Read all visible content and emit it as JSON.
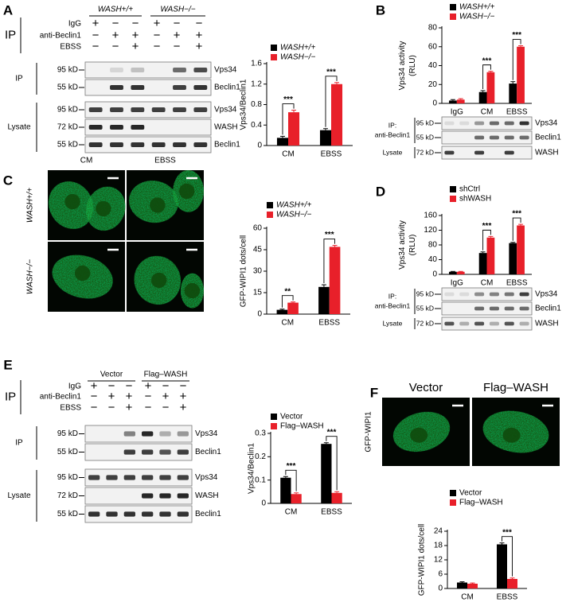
{
  "chart_data": [
    {
      "type": "bar",
      "y_label": [
        "Vps34/Beclin1"
      ],
      "categories": [
        "CM",
        "EBSS"
      ],
      "series": [
        {
          "name": "WASH+/+",
          "color": "#000000",
          "values": [
            0.15,
            0.3
          ],
          "errors": [
            0.03,
            0.03
          ]
        },
        {
          "name": "WASH−/−",
          "color": "#e8202a",
          "values": [
            0.65,
            1.2
          ],
          "errors": [
            0.04,
            0.03
          ]
        }
      ],
      "significance": [
        "***",
        "***"
      ],
      "ylim": [
        0,
        1.6
      ],
      "yticks": [
        0,
        0.4,
        0.8,
        1.2,
        1.6
      ]
    },
    {
      "type": "bar",
      "y_label": [
        "Vps34 activity",
        "(RLU)"
      ],
      "categories": [
        "IgG",
        "CM",
        "EBSS"
      ],
      "series": [
        {
          "name": "WASH+/+",
          "color": "#000000",
          "values": [
            3,
            12,
            21
          ],
          "errors": [
            1,
            1.5,
            2
          ]
        },
        {
          "name": "WASH−/−",
          "color": "#e8202a",
          "values": [
            4,
            33,
            60
          ],
          "errors": [
            1,
            1,
            1
          ]
        }
      ],
      "significance": [
        null,
        "***",
        "***"
      ],
      "ylim": [
        0,
        80
      ],
      "yticks": [
        0,
        20,
        40,
        60,
        80
      ]
    },
    {
      "type": "bar",
      "y_label": [
        "GFP-WIPI1 dots/cell"
      ],
      "categories": [
        "CM",
        "EBSS"
      ],
      "series": [
        {
          "name": "WASH+/+",
          "color": "#000000",
          "values": [
            3,
            19
          ],
          "errors": [
            0.5,
            1.5
          ]
        },
        {
          "name": "WASH−/−",
          "color": "#e8202a",
          "values": [
            8,
            47
          ],
          "errors": [
            0.5,
            1
          ]
        }
      ],
      "significance": [
        "**",
        "***"
      ],
      "ylim": [
        0,
        60
      ],
      "yticks": [
        0,
        15,
        30,
        45,
        60
      ]
    },
    {
      "type": "bar",
      "y_label": [
        "Vps34 activity",
        "(RLU)"
      ],
      "categories": [
        "IgG",
        "CM",
        "EBSS"
      ],
      "series": [
        {
          "name": "shCtrl",
          "color": "#000000",
          "values": [
            7,
            58,
            85
          ],
          "errors": [
            1,
            3,
            2
          ]
        },
        {
          "name": "shWASH",
          "color": "#e8202a",
          "values": [
            7,
            100,
            133
          ],
          "errors": [
            1,
            3,
            3
          ]
        }
      ],
      "significance": [
        null,
        "***",
        "***"
      ],
      "ylim": [
        0,
        160
      ],
      "yticks": [
        0,
        40,
        80,
        120,
        160
      ]
    },
    {
      "type": "bar",
      "y_label": [
        "Vps34/Beclin1"
      ],
      "categories": [
        "CM",
        "EBSS"
      ],
      "series": [
        {
          "name": "Vector",
          "color": "#000000",
          "values": [
            0.11,
            0.255
          ],
          "errors": [
            0.005,
            0.005
          ]
        },
        {
          "name": "Flag–WASH",
          "color": "#e8202a",
          "values": [
            0.04,
            0.045
          ],
          "errors": [
            0.005,
            0.005
          ]
        }
      ],
      "significance": [
        "***",
        "***"
      ],
      "ylim": [
        0,
        0.3
      ],
      "yticks": [
        0,
        0.1,
        0.2,
        0.3
      ]
    },
    {
      "type": "bar",
      "y_label": [
        "GFP-WIPI1 dots/cell"
      ],
      "categories": [
        "CM",
        "EBSS"
      ],
      "series": [
        {
          "name": "Vector",
          "color": "#000000",
          "values": [
            2.5,
            18.5
          ],
          "errors": [
            0.3,
            0.6
          ]
        },
        {
          "name": "Flag–WASH",
          "color": "#e8202a",
          "values": [
            2,
            4
          ],
          "errors": [
            0.3,
            0.4
          ]
        }
      ],
      "significance": [
        null,
        "***"
      ],
      "ylim": [
        0,
        24
      ],
      "yticks": [
        0,
        6,
        12,
        18,
        24
      ]
    }
  ],
  "panels": {
    "A": {
      "letter": "A",
      "ip": "IP",
      "groups": [
        "WASH+/+",
        "WASH−/−"
      ],
      "treatments": [
        {
          "name": "IgG",
          "signs": [
            "+",
            "−",
            "−",
            "+",
            "−",
            "−"
          ]
        },
        {
          "name": "anti-Beclin1",
          "signs": [
            "−",
            "+",
            "+",
            "−",
            "+",
            "+"
          ]
        },
        {
          "name": "EBSS",
          "signs": [
            "−",
            "−",
            "+",
            "−",
            "−",
            "+"
          ]
        }
      ],
      "blots": [
        {
          "section": [
            "IP"
          ],
          "rows": [
            {
              "marker": "95 kD",
              "protein": "Vps34"
            },
            {
              "marker": "55 kD",
              "protein": "Beclin1"
            }
          ]
        },
        {
          "section": [
            "Lysate"
          ],
          "rows": [
            {
              "marker": "95 kD",
              "protein": "Vps34"
            },
            {
              "marker": "72 kD",
              "protein": "WASH"
            },
            {
              "marker": "55 kD",
              "protein": "Beclin1"
            }
          ]
        }
      ]
    },
    "B": {
      "letter": "B",
      "blots": [
        {
          "section": [
            "IP:",
            "anti-Beclin1"
          ],
          "rows": [
            {
              "marker": "95 kD",
              "protein": "Vps34"
            },
            {
              "marker": "55 kD",
              "protein": "Beclin1"
            }
          ]
        },
        {
          "section": [
            "Lysate"
          ],
          "rows": [
            {
              "marker": "72 kD",
              "protein": "WASH"
            }
          ]
        }
      ]
    },
    "C": {
      "letter": "C",
      "columns": [
        "CM",
        "EBSS"
      ],
      "rows": [
        "WASH+/+",
        "WASH−/−"
      ]
    },
    "D": {
      "letter": "D",
      "blots": [
        {
          "section": [
            "IP:",
            "anti-Beclin1"
          ],
          "rows": [
            {
              "marker": "95 kD",
              "protein": "Vps34"
            },
            {
              "marker": "55 kD",
              "protein": "Beclin1"
            }
          ]
        },
        {
          "section": [
            "Lysate"
          ],
          "rows": [
            {
              "marker": "72 kD",
              "protein": "WASH"
            }
          ]
        }
      ]
    },
    "E": {
      "letter": "E",
      "ip": "IP",
      "groups": [
        "Vector",
        "Flag–WASH"
      ],
      "treatments": [
        {
          "name": "IgG",
          "signs": [
            "+",
            "−",
            "−",
            "+",
            "−",
            "−"
          ]
        },
        {
          "name": "anti-Beclin1",
          "signs": [
            "−",
            "+",
            "+",
            "−",
            "+",
            "+"
          ]
        },
        {
          "name": "EBSS",
          "signs": [
            "−",
            "−",
            "+",
            "−",
            "−",
            "+"
          ]
        }
      ],
      "blots": [
        {
          "section": [
            "IP"
          ],
          "rows": [
            {
              "marker": "95 kD",
              "protein": "Vps34"
            },
            {
              "marker": "55 kD",
              "protein": "Beclin1"
            }
          ]
        },
        {
          "section": [
            "Lysate"
          ],
          "rows": [
            {
              "marker": "95 kD",
              "protein": "Vps34"
            },
            {
              "marker": "72 kD",
              "protein": "WASH"
            },
            {
              "marker": "55 kD",
              "protein": "Beclin1"
            }
          ]
        }
      ]
    },
    "F": {
      "letter": "F",
      "columns": [
        "Vector",
        "Flag–WASH"
      ],
      "rows": [
        "GFP-WIPI1"
      ]
    }
  }
}
